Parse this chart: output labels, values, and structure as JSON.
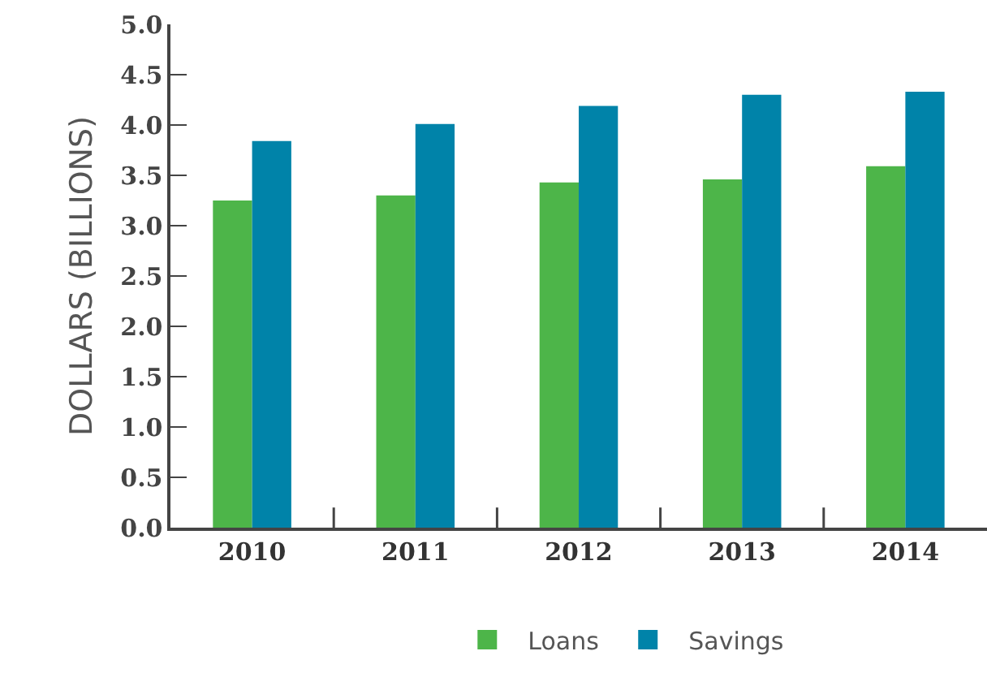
{
  "chart_data": {
    "type": "bar",
    "ylabel": "DOLLARS (BILLIONS)",
    "categories": [
      "2010",
      "2011",
      "2012",
      "2013",
      "2014"
    ],
    "series": [
      {
        "name": "Loans",
        "color": "#4db549",
        "values": [
          3.25,
          3.3,
          3.43,
          3.46,
          3.59
        ]
      },
      {
        "name": "Savings",
        "color": "#0083a9",
        "values": [
          3.84,
          4.01,
          4.19,
          4.3,
          4.33
        ]
      }
    ],
    "ylim": [
      0,
      5
    ],
    "yticks": [
      {
        "value": 0,
        "label": "0.0"
      },
      0.5,
      {
        "value": 1,
        "label": "1.0"
      },
      1.5,
      {
        "value": 2,
        "label": "2.0"
      },
      2.5,
      {
        "value": 3,
        "label": "3.0"
      },
      3.5,
      {
        "value": 4,
        "label": "4.0"
      },
      4.5,
      {
        "value": 5,
        "label": "5.0"
      }
    ],
    "grid": false,
    "legend": "bottom"
  }
}
